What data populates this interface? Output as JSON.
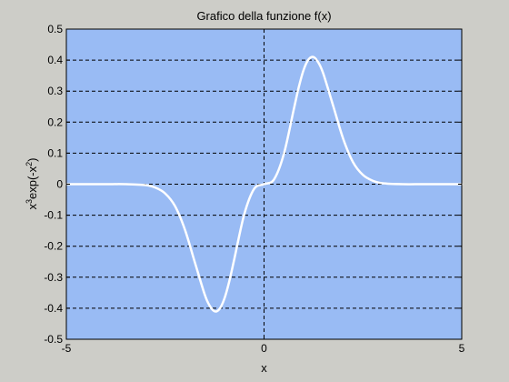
{
  "window": {
    "background": "#cdcdc8"
  },
  "chart_data": {
    "type": "line",
    "title": "Grafico della funzione f(x)",
    "xlabel": "x",
    "ylabel": {
      "base": "x",
      "exp1": "3",
      "mid": "exp(-x",
      "exp2": "2",
      "tail": ")"
    },
    "xlim": [
      -5,
      5
    ],
    "ylim": [
      -0.5,
      0.5
    ],
    "x_ticks": [
      -5,
      0,
      5
    ],
    "x_tick_labels": [
      "-5",
      "0",
      "5"
    ],
    "y_ticks": [
      -0.5,
      -0.4,
      -0.3,
      -0.2,
      -0.1,
      0,
      0.1,
      0.2,
      0.3,
      0.4,
      0.5
    ],
    "y_tick_labels": [
      "-0.5",
      "-0.4",
      "-0.3",
      "-0.2",
      "-0.1",
      "0",
      "0.1",
      "0.2",
      "0.3",
      "0.4",
      "0.5"
    ],
    "grid": {
      "horizontal": "dashed",
      "vertical_at_zero": "dashed"
    },
    "plot_background": "#99bbf4",
    "grid_color": "#000000",
    "series": [
      {
        "line_color": "#ffffff",
        "x": [
          -5.0,
          -4.5,
          -4.0,
          -3.5,
          -3.0,
          -2.75,
          -2.5,
          -2.25,
          -2.0,
          -1.75,
          -1.5,
          -1.375,
          -1.25,
          -1.125,
          -1.0,
          -0.875,
          -0.75,
          -0.5,
          -0.25,
          0.0,
          0.25,
          0.5,
          0.75,
          0.875,
          1.0,
          1.125,
          1.25,
          1.375,
          1.5,
          1.75,
          2.0,
          2.25,
          2.5,
          2.75,
          3.0,
          3.5,
          4.0,
          4.5,
          5.0
        ],
        "y": [
          0.0,
          0.0,
          0.0,
          0.0,
          -0.003,
          -0.011,
          -0.03,
          -0.071,
          -0.147,
          -0.252,
          -0.356,
          -0.392,
          -0.41,
          -0.402,
          -0.368,
          -0.311,
          -0.24,
          -0.097,
          -0.015,
          0.0,
          0.015,
          0.097,
          0.24,
          0.311,
          0.368,
          0.402,
          0.41,
          0.392,
          0.356,
          0.252,
          0.147,
          0.071,
          0.03,
          0.011,
          0.003,
          0.0,
          0.0,
          0.0,
          0.0
        ]
      }
    ]
  }
}
